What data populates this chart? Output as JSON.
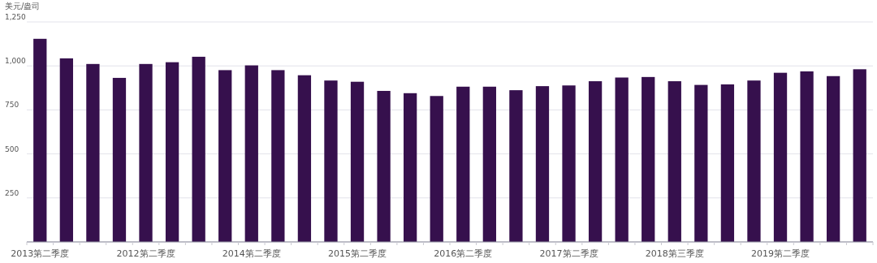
{
  "chart_data": {
    "type": "bar",
    "ylabel": "美元/盎司",
    "categories": [
      "2013第二季度",
      null,
      null,
      null,
      "2012第二季度",
      null,
      null,
      null,
      "2014第二季度",
      null,
      null,
      null,
      "2015第二季度",
      null,
      null,
      null,
      "2016第二季度",
      null,
      null,
      null,
      "2017第二季度",
      null,
      null,
      null,
      "2018第三季度",
      null,
      null,
      null,
      "2019第二季度",
      null,
      null,
      null
    ],
    "values": [
      1154,
      1043,
      1011,
      932,
      1011,
      1021,
      1052,
      976,
      1003,
      976,
      947,
      917,
      910,
      858,
      845,
      829,
      882,
      882,
      862,
      885,
      889,
      913,
      934,
      937,
      913,
      892,
      895,
      917,
      961,
      969,
      942,
      981
    ],
    "color": "#36104d",
    "ylim": [
      0,
      1250
    ],
    "yticks": [
      {
        "value": 0,
        "label": null
      },
      250,
      500,
      750,
      {
        "value": 1000,
        "label": "1,000"
      },
      {
        "value": 1250,
        "label": "1,250"
      }
    ],
    "grid": "y"
  }
}
